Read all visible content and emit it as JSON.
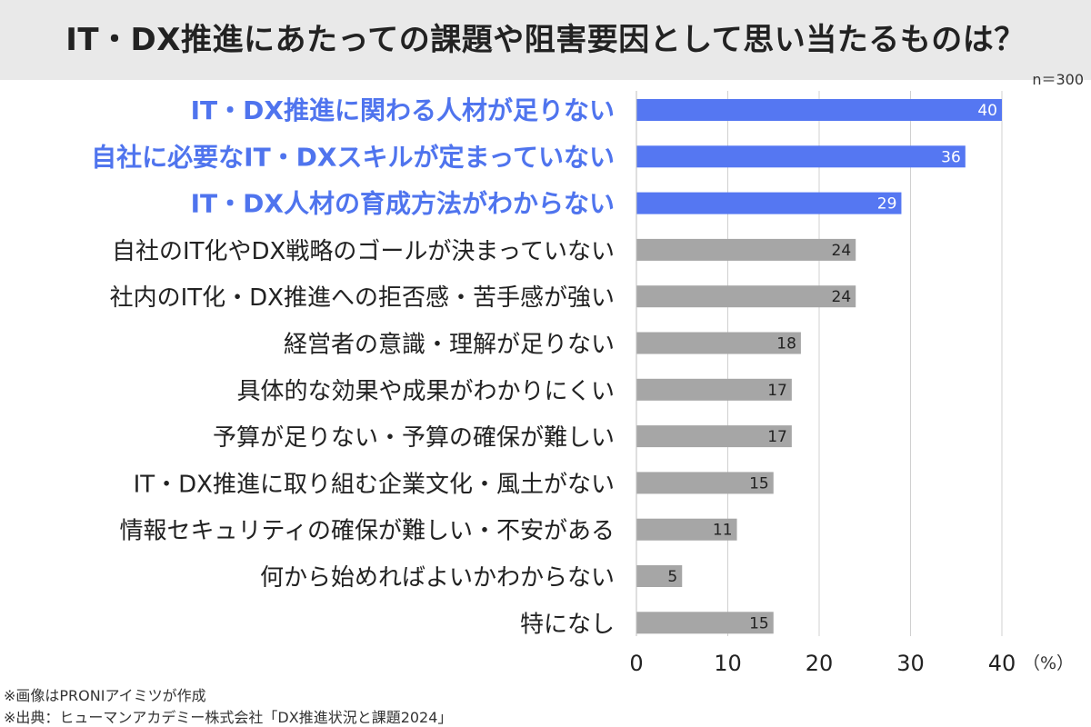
{
  "header": {
    "title": "IT・DX推進にあたっての課題や阻害要因として思い当たるものは？",
    "sample_size": "n＝300"
  },
  "footnotes": [
    "※画像はPRONIアイミツが作成",
    "※出典：ヒューマンアカデミー株式会社「DX推進状況と課題2024」"
  ],
  "colors": {
    "highlight": "#5577f2",
    "default_bar": "#a6a6a6",
    "highlight_label": "#4f74ee",
    "grid": "#d0d0d0"
  },
  "chart_data": {
    "type": "bar",
    "orientation": "horizontal",
    "categories": [
      "IT・DX推進に関わる人材が足りない",
      "自社に必要なIT・DXスキルが定まっていない",
      "IT・DX人材の育成方法がわからない",
      "自社のIT化やDX戦略のゴールが決まっていない",
      "社内のIT化・DX推進への拒否感・苦手感が強い",
      "経営者の意識・理解が足りない",
      "具体的な効果や成果がわかりにくい",
      "予算が足りない・予算の確保が難しい",
      "IT・DX推進に取り組む企業文化・風土がない",
      "情報セキュリティの確保が難しい・不安がある",
      "何から始めればよいかわからない",
      "特になし"
    ],
    "values": [
      40,
      36,
      29,
      24,
      24,
      18,
      17,
      17,
      15,
      11,
      5,
      15
    ],
    "highlighted": [
      true,
      true,
      true,
      false,
      false,
      false,
      false,
      false,
      false,
      false,
      false,
      false
    ],
    "xlim": [
      0,
      40
    ],
    "xticks": [
      0,
      10,
      20,
      30,
      40
    ],
    "unit_label": "（%）",
    "grid": true
  }
}
